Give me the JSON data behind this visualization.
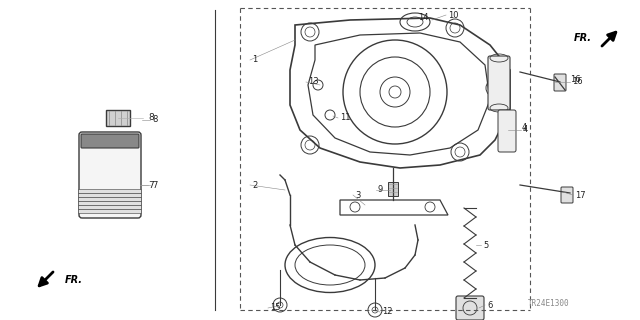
{
  "bg_color": "#ffffff",
  "diagram_code": "TR24E1300",
  "line_color": "#3a3a3a",
  "text_color": "#222222",
  "fig_w": 6.4,
  "fig_h": 3.2,
  "dpi": 100
}
